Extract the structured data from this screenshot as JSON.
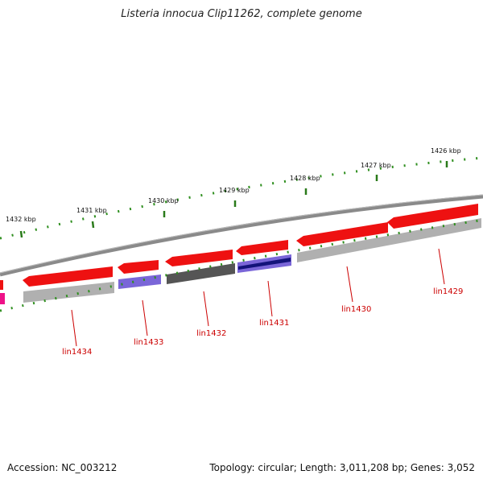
{
  "title": "Listeria innocua Clip11262, complete genome",
  "footer": {
    "accession": "Accession: NC_003212",
    "summary": "Topology: circular; Length: 3,011,208 bp; Genes: 3,052"
  },
  "colors": {
    "backbone": "#8a8a8a",
    "tick_major": "#2a7a1a",
    "tick_minor": "#2f8f1f",
    "label": "#cc0000",
    "forward_gene": "#ee1111",
    "blue_cds": "#7a66d8",
    "dark_cds": "#555555",
    "navy_cds": "#13137a",
    "grey_cds": "#b0b0b0",
    "magenta": "#ee1188"
  },
  "ticks": [
    {
      "label": "1432 kbp"
    },
    {
      "label": "1431 kbp"
    },
    {
      "label": "1430 kbp"
    },
    {
      "label": "1429 kbp"
    },
    {
      "label": "1428 kbp"
    },
    {
      "label": "1427 kbp"
    },
    {
      "label": "1426 kbp"
    }
  ],
  "genes": [
    {
      "label": "lin1434"
    },
    {
      "label": "lin1433"
    },
    {
      "label": "lin1432"
    },
    {
      "label": "lin1431"
    },
    {
      "label": "lin1430"
    },
    {
      "label": "lin1429"
    }
  ]
}
